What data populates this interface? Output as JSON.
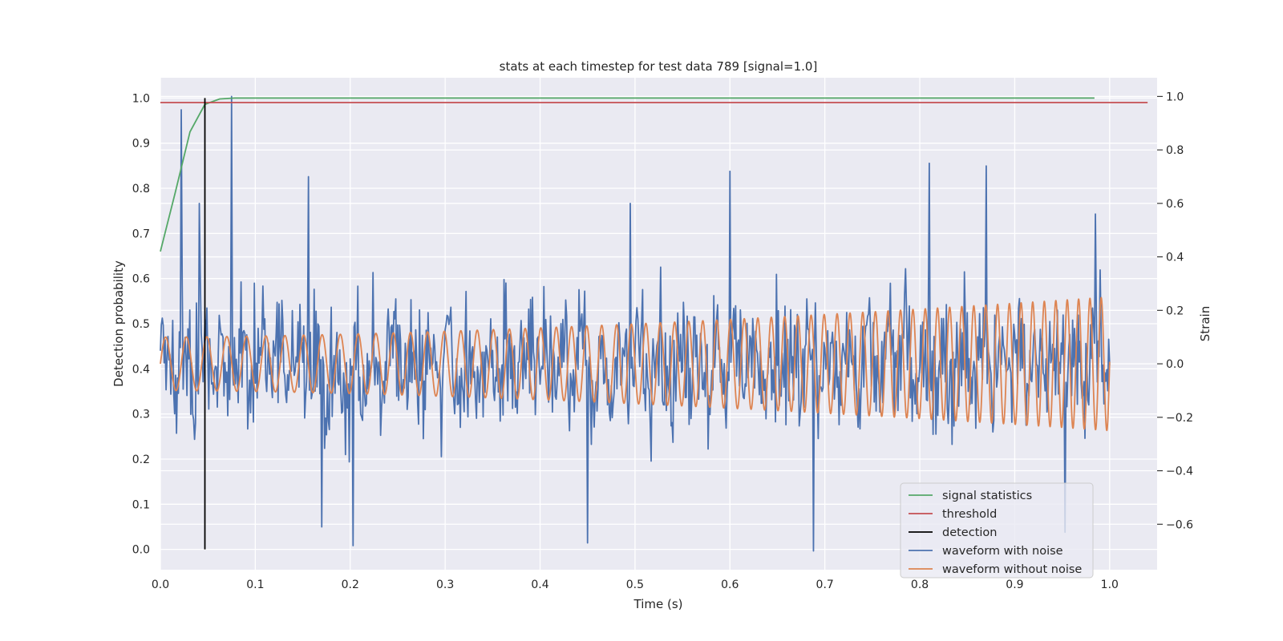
{
  "chart_data": {
    "type": "line",
    "title": "stats at each timestep for test data 789 [signal=1.0]",
    "xlabel": "Time (s)",
    "ylabel_left": "Detection probability",
    "ylabel_right": "Strain",
    "xlim": [
      0.0,
      1.05
    ],
    "ylim_left": [
      -0.045,
      1.045
    ],
    "ylim_right": [
      -0.77,
      1.07
    ],
    "x_ticks": [
      "0.0",
      "0.1",
      "0.2",
      "0.3",
      "0.4",
      "0.5",
      "0.6",
      "0.7",
      "0.8",
      "0.9",
      "1.0"
    ],
    "y_ticks_left": [
      "0.0",
      "0.1",
      "0.2",
      "0.3",
      "0.4",
      "0.5",
      "0.6",
      "0.7",
      "0.8",
      "0.9",
      "1.0"
    ],
    "y_ticks_right": [
      "−0.6",
      "−0.4",
      "−0.2",
      "0.0",
      "0.2",
      "0.4",
      "0.6",
      "0.8",
      "1.0"
    ],
    "grid": true,
    "legend_position": "bottom-right",
    "series": [
      {
        "name": "signal statistics",
        "axis": "left",
        "color": "#55a868",
        "x": [
          0.0,
          0.0156,
          0.0312,
          0.0469,
          0.0625,
          0.0781,
          0.0938,
          0.1094,
          0.125,
          0.25,
          0.5,
          0.75,
          0.984
        ],
        "y": [
          0.66,
          0.79,
          0.925,
          0.986,
          0.998,
          1.0,
          1.0,
          1.0,
          1.0,
          1.0,
          1.0,
          1.0,
          1.0
        ]
      },
      {
        "name": "threshold",
        "axis": "left",
        "color": "#c44e52",
        "x": [
          0.0,
          1.04
        ],
        "y": [
          0.99,
          0.99
        ]
      },
      {
        "name": "detection",
        "axis": "left",
        "color": "#000000",
        "x": [
          0.0469,
          0.0469
        ],
        "y": [
          0.0,
          1.0
        ]
      },
      {
        "name": "waveform with noise",
        "axis": "right",
        "color": "#4c72b0",
        "x_range": [
          0.0,
          1.0
        ],
        "y_range": [
          -0.7,
          1.0
        ],
        "spikes": [
          {
            "x": 0.022,
            "y": 0.95
          },
          {
            "x": 0.041,
            "y": 0.6
          },
          {
            "x": 0.075,
            "y": 1.0
          },
          {
            "x": 0.156,
            "y": 0.7
          },
          {
            "x": 0.17,
            "y": -0.61
          },
          {
            "x": 0.203,
            "y": -0.68
          },
          {
            "x": 0.45,
            "y": -0.67
          },
          {
            "x": 0.495,
            "y": 0.6
          },
          {
            "x": 0.6,
            "y": 0.72
          },
          {
            "x": 0.688,
            "y": -0.7
          },
          {
            "x": 0.81,
            "y": 0.75
          },
          {
            "x": 0.87,
            "y": 0.74
          },
          {
            "x": 0.953,
            "y": -0.63
          },
          {
            "x": 0.985,
            "y": 0.56
          }
        ]
      },
      {
        "name": "waveform without noise",
        "axis": "right",
        "color": "#dd8452",
        "x_range": [
          0.0,
          1.0
        ],
        "amplitude_start": 0.1,
        "amplitude_end": 0.25,
        "frequency_start_hz": 45,
        "frequency_end_hz": 85
      }
    ]
  }
}
